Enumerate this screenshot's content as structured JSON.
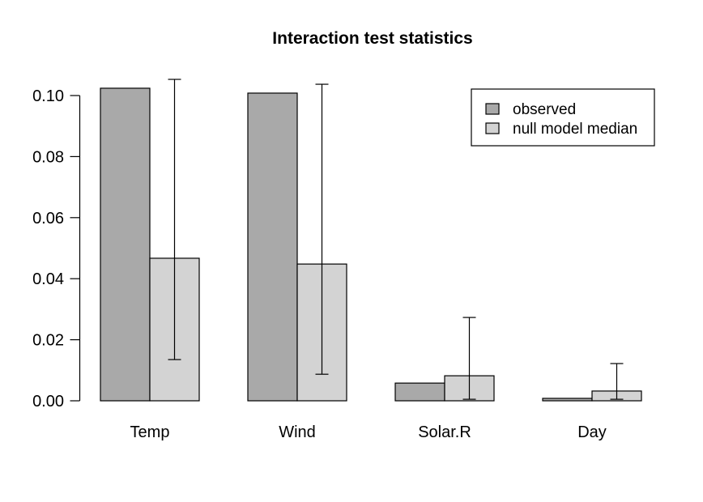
{
  "chart_data": {
    "type": "bar",
    "title": "Interaction test statistics",
    "categories": [
      "Temp",
      "Wind",
      "Solar.R",
      "Day"
    ],
    "series": [
      {
        "name": "observed",
        "color": "#a9a9a9",
        "values": [
          0.1024,
          0.1008,
          0.0058,
          0.0008
        ]
      },
      {
        "name": "null model median",
        "color": "#d3d3d3",
        "values": [
          0.0467,
          0.0448,
          0.0082,
          0.0032
        ]
      }
    ],
    "error_bars": {
      "attached_to": "null model median",
      "low": [
        0.0135,
        0.0087,
        0.0005,
        0.0005
      ],
      "high": [
        0.1053,
        0.1037,
        0.0273,
        0.0122
      ]
    },
    "y_axis": {
      "tick_labels": [
        "0.00",
        "0.02",
        "0.04",
        "0.06",
        "0.08",
        "0.10"
      ],
      "tick_values": [
        0,
        0.02,
        0.04,
        0.06,
        0.08,
        0.1
      ],
      "range": [
        0,
        0.105
      ]
    },
    "xlabel": "",
    "ylabel": "",
    "legend_position": "top-right",
    "grid": false,
    "background": "#ffffff",
    "bar_border_color": "#000000"
  }
}
